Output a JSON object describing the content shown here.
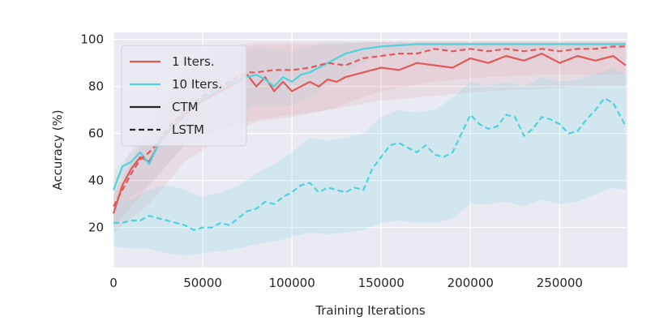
{
  "chart_data": {
    "type": "line",
    "xlabel": "Training Iterations",
    "ylabel": "Accuracy (%)",
    "xlim": [
      0,
      288000
    ],
    "ylim": [
      3,
      103
    ],
    "xticks": [
      0,
      50000,
      100000,
      150000,
      200000,
      250000
    ],
    "xtick_labels": [
      "0",
      "50000",
      "100000",
      "150000",
      "200000",
      "250000"
    ],
    "yticks": [
      20,
      40,
      60,
      80,
      100
    ],
    "ytick_labels": [
      "20",
      "40",
      "60",
      "80",
      "100"
    ],
    "grid": true,
    "background": "#eaeaf2",
    "legend": {
      "position": "top-left",
      "color_entries": [
        {
          "label": "1 Iters.",
          "color": "#e05a5a"
        },
        {
          "label": "10 Iters.",
          "color": "#4fd2dc"
        }
      ],
      "style_entries": [
        {
          "label": "CTM",
          "dash": "solid"
        },
        {
          "label": "LSTM",
          "dash": "dashed"
        }
      ]
    },
    "series": [
      {
        "name": "1 Iters. CTM",
        "color": "#e05a5a",
        "dash": "solid",
        "x": [
          0,
          5000,
          10000,
          15000,
          20000,
          25000,
          30000,
          40000,
          50000,
          60000,
          70000,
          75000,
          80000,
          85000,
          90000,
          95000,
          100000,
          105000,
          110000,
          115000,
          120000,
          125000,
          130000,
          140000,
          150000,
          160000,
          170000,
          180000,
          190000,
          200000,
          210000,
          220000,
          230000,
          240000,
          250000,
          260000,
          270000,
          280000,
          287000
        ],
        "y": [
          26,
          38,
          45,
          50,
          48,
          55,
          60,
          68,
          74,
          78,
          82,
          85,
          80,
          84,
          78,
          82,
          78,
          80,
          82,
          80,
          83,
          82,
          84,
          86,
          88,
          87,
          90,
          89,
          88,
          92,
          90,
          93,
          91,
          94,
          90,
          93,
          91,
          93,
          89
        ]
      },
      {
        "name": "10 Iters. CTM",
        "color": "#4fd2dc",
        "dash": "solid",
        "x": [
          0,
          5000,
          10000,
          15000,
          20000,
          25000,
          30000,
          40000,
          50000,
          60000,
          70000,
          75000,
          80000,
          85000,
          90000,
          95000,
          100000,
          105000,
          110000,
          115000,
          120000,
          125000,
          130000,
          140000,
          150000,
          160000,
          170000,
          180000,
          190000,
          200000,
          210000,
          220000,
          230000,
          240000,
          250000,
          260000,
          270000,
          280000,
          287000
        ],
        "y": [
          36,
          46,
          48,
          52,
          47,
          55,
          61,
          69,
          75,
          79,
          83,
          84,
          85,
          83,
          80,
          84,
          82,
          85,
          86,
          88,
          90,
          92,
          94,
          96,
          97,
          97.5,
          98,
          98,
          98,
          98,
          98,
          98,
          98,
          98,
          98,
          98,
          98,
          98,
          98
        ]
      },
      {
        "name": "1 Iters. LSTM",
        "color": "#e05a5a",
        "dash": "dashed",
        "x": [
          0,
          5000,
          10000,
          15000,
          20000,
          25000,
          30000,
          40000,
          50000,
          60000,
          70000,
          75000,
          80000,
          90000,
          100000,
          110000,
          120000,
          130000,
          140000,
          150000,
          160000,
          170000,
          180000,
          190000,
          200000,
          210000,
          220000,
          230000,
          240000,
          250000,
          260000,
          270000,
          280000,
          287000
        ],
        "y": [
          29,
          36,
          43,
          49,
          52,
          56,
          62,
          70,
          76,
          80,
          84,
          86,
          86,
          87,
          87,
          88,
          90,
          89,
          92,
          93,
          94,
          94,
          96,
          95,
          96,
          95,
          96,
          95,
          96,
          95,
          96,
          96,
          97,
          97
        ]
      },
      {
        "name": "10 Iters. LSTM",
        "color": "#4fd2dc",
        "dash": "dashed",
        "x": [
          0,
          5000,
          10000,
          15000,
          20000,
          25000,
          30000,
          35000,
          40000,
          45000,
          50000,
          55000,
          60000,
          65000,
          70000,
          75000,
          80000,
          85000,
          90000,
          95000,
          100000,
          105000,
          110000,
          115000,
          120000,
          125000,
          130000,
          135000,
          140000,
          145000,
          150000,
          155000,
          160000,
          165000,
          170000,
          175000,
          180000,
          185000,
          190000,
          195000,
          200000,
          205000,
          210000,
          215000,
          220000,
          225000,
          230000,
          235000,
          240000,
          245000,
          250000,
          255000,
          260000,
          265000,
          270000,
          275000,
          280000,
          285000,
          287000
        ],
        "y": [
          22,
          22,
          23,
          23,
          25,
          24,
          23,
          22,
          21,
          19,
          20,
          20,
          22,
          21,
          24,
          27,
          28,
          31,
          30,
          33,
          35,
          38,
          39,
          35,
          37,
          36,
          35,
          37,
          36,
          45,
          50,
          55,
          56,
          54,
          52,
          55,
          51,
          50,
          52,
          60,
          68,
          64,
          62,
          63,
          68,
          67,
          59,
          62,
          67,
          66,
          64,
          60,
          61,
          66,
          70,
          75,
          73,
          66,
          63
        ]
      }
    ],
    "bands": [
      {
        "name": "1 Iters. CTM",
        "color": "#e05a5a",
        "opacity": 0.09,
        "x": [
          0,
          20000,
          40000,
          60000,
          80000,
          100000,
          120000,
          150000,
          180000,
          210000,
          240000,
          270000,
          287000
        ],
        "lower": [
          18,
          30,
          48,
          58,
          65,
          67,
          70,
          74,
          76,
          78,
          79,
          80,
          80
        ],
        "upper": [
          34,
          62,
          86,
          95,
          98,
          98,
          98,
          99,
          99,
          99,
          99,
          99,
          99
        ]
      },
      {
        "name": "1 Iters. LSTM",
        "color": "#e05a5a",
        "opacity": 0.08,
        "x": [
          0,
          20000,
          40000,
          60000,
          80000,
          100000,
          120000,
          150000,
          180000,
          210000,
          240000,
          270000,
          287000
        ],
        "lower": [
          20,
          38,
          55,
          62,
          66,
          68,
          70,
          78,
          82,
          84,
          85,
          85,
          85
        ],
        "upper": [
          40,
          66,
          88,
          96,
          99,
          99,
          99,
          99,
          99,
          99,
          99,
          99,
          99
        ]
      },
      {
        "name": "10 Iters. CTM",
        "color": "#4fd2dc",
        "opacity": 0.08,
        "x": [
          0,
          20000,
          40000,
          60000,
          80000,
          100000,
          120000,
          140000,
          150000,
          180000,
          210000,
          240000,
          270000,
          287000
        ],
        "lower": [
          28,
          38,
          55,
          65,
          72,
          72,
          80,
          90,
          94,
          96,
          96,
          96,
          96,
          96
        ],
        "upper": [
          44,
          60,
          84,
          93,
          96,
          95,
          99,
          99,
          99,
          99,
          99,
          99,
          99,
          99
        ]
      },
      {
        "name": "10 Iters. LSTM",
        "color": "#4fd2dc",
        "opacity": 0.16,
        "x": [
          0,
          10000,
          20000,
          30000,
          40000,
          50000,
          60000,
          70000,
          80000,
          90000,
          100000,
          110000,
          120000,
          130000,
          140000,
          150000,
          160000,
          170000,
          180000,
          190000,
          200000,
          210000,
          220000,
          230000,
          240000,
          250000,
          260000,
          270000,
          280000,
          287000
        ],
        "lower": [
          12,
          11,
          11,
          9,
          8,
          9,
          10,
          11,
          13,
          14,
          16,
          18,
          17,
          18,
          19,
          22,
          23,
          22,
          22,
          24,
          30,
          30,
          31,
          29,
          32,
          30,
          31,
          34,
          37,
          36
        ],
        "upper": [
          30,
          32,
          36,
          38,
          36,
          33,
          35,
          38,
          43,
          47,
          52,
          58,
          57,
          58,
          60,
          67,
          70,
          69,
          70,
          75,
          82,
          80,
          82,
          80,
          84,
          82,
          83,
          85,
          88,
          85
        ]
      }
    ]
  }
}
